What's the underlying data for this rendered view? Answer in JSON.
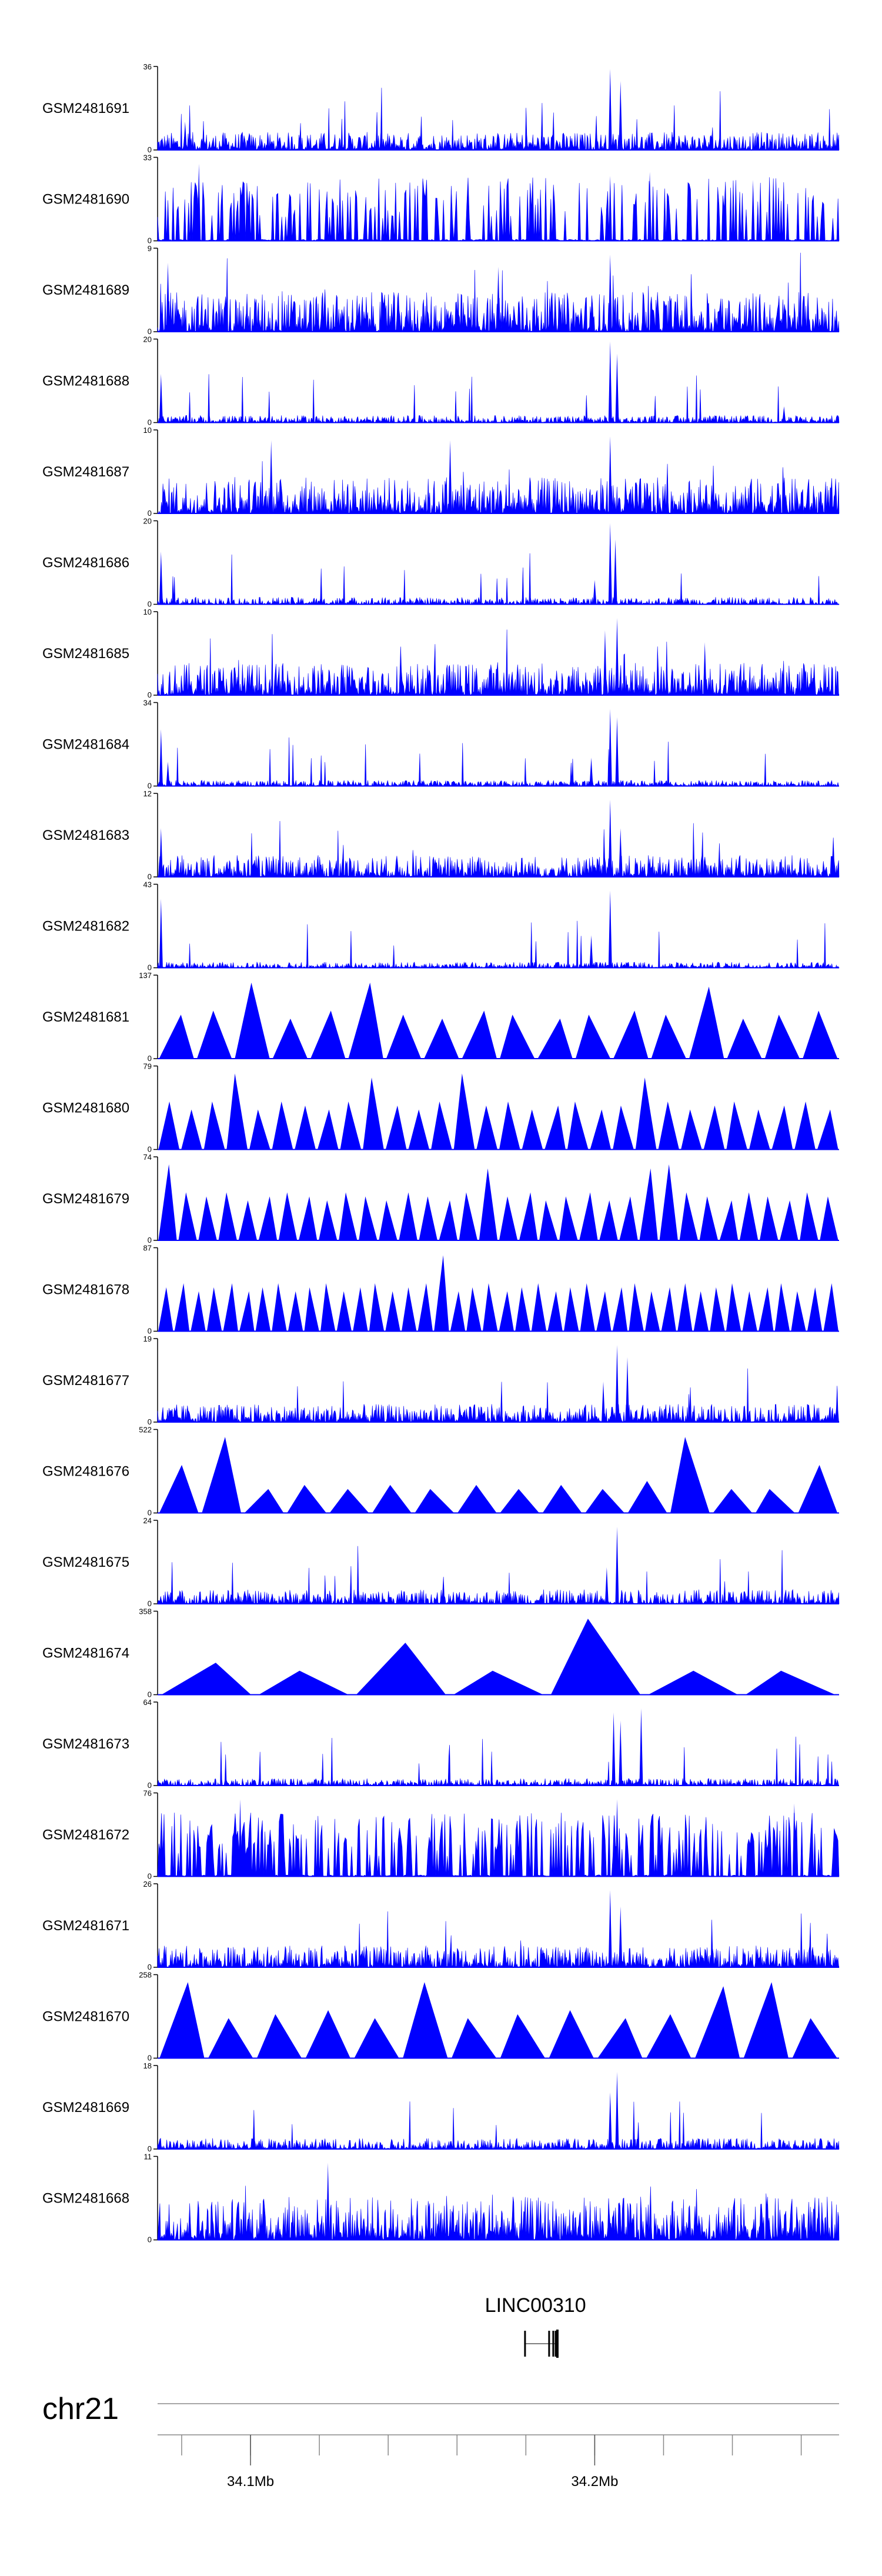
{
  "chart_data": {
    "type": "area",
    "chromosome": "chr21",
    "x_range_mb": [
      34.073,
      34.271
    ],
    "x_ticks": [
      {
        "pos": 34.1,
        "label": "34.1Mb"
      },
      {
        "pos": 34.2,
        "label": "34.2Mb"
      }
    ],
    "x_minor_ticks": [
      34.08,
      34.1,
      34.12,
      34.14,
      34.16,
      34.18,
      34.2,
      34.22,
      34.24,
      34.26
    ],
    "bar_color": "#0000ff",
    "tracks": [
      {
        "label": "GSM2481691",
        "ymax": "36",
        "ymin": "0",
        "kind": "dense",
        "density": 0.25,
        "spikes": [
          [
            34.2045,
            1.0
          ],
          [
            34.2075,
            0.85
          ],
          [
            34.2005,
            0.25
          ],
          [
            34.081,
            0.35
          ]
        ]
      },
      {
        "label": "GSM2481690",
        "ymax": "33",
        "ymin": "0",
        "kind": "comb",
        "density": 0.35,
        "spikes": [
          [
            34.2045,
            0.8
          ],
          [
            34.216,
            0.85
          ],
          [
            34.246,
            0.75
          ],
          [
            34.085,
            0.95
          ]
        ]
      },
      {
        "label": "GSM2481689",
        "ymax": "9",
        "ymin": "0",
        "kind": "dense",
        "density": 0.55,
        "spikes": [
          [
            34.2045,
            0.95
          ],
          [
            34.076,
            0.85
          ],
          [
            34.172,
            0.8
          ]
        ]
      },
      {
        "label": "GSM2481688",
        "ymax": "20",
        "ymin": "0",
        "kind": "dense",
        "density": 0.1,
        "spikes": [
          [
            34.2045,
            1.0
          ],
          [
            34.2065,
            0.85
          ],
          [
            34.074,
            0.6
          ],
          [
            34.255,
            0.2
          ]
        ]
      },
      {
        "label": "GSM2481687",
        "ymax": "10",
        "ymin": "0",
        "kind": "dense",
        "density": 0.5,
        "spikes": [
          [
            34.2045,
            0.95
          ],
          [
            34.106,
            0.9
          ],
          [
            34.158,
            0.9
          ]
        ]
      },
      {
        "label": "GSM2481686",
        "ymax": "20",
        "ymin": "0",
        "kind": "dense",
        "density": 0.1,
        "spikes": [
          [
            34.2045,
            1.0
          ],
          [
            34.206,
            0.8
          ],
          [
            34.074,
            0.65
          ],
          [
            34.2,
            0.3
          ]
        ]
      },
      {
        "label": "GSM2481685",
        "ymax": "10",
        "ymin": "0",
        "kind": "dense",
        "density": 0.45,
        "spikes": [
          [
            34.2065,
            0.95
          ],
          [
            34.203,
            0.8
          ],
          [
            34.232,
            0.65
          ]
        ]
      },
      {
        "label": "GSM2481684",
        "ymax": "34",
        "ymin": "0",
        "kind": "dense",
        "density": 0.08,
        "spikes": [
          [
            34.2045,
            0.95
          ],
          [
            34.2065,
            0.85
          ],
          [
            34.199,
            0.35
          ],
          [
            34.074,
            0.7
          ],
          [
            34.076,
            0.3
          ]
        ]
      },
      {
        "label": "GSM2481683",
        "ymax": "12",
        "ymin": "0",
        "kind": "dense",
        "density": 0.3,
        "spikes": [
          [
            34.2045,
            0.95
          ],
          [
            34.2075,
            0.6
          ],
          [
            34.074,
            0.6
          ]
        ]
      },
      {
        "label": "GSM2481682",
        "ymax": "43",
        "ymin": "0",
        "kind": "dense",
        "density": 0.08,
        "spikes": [
          [
            34.2045,
            0.95
          ],
          [
            34.199,
            0.4
          ],
          [
            34.074,
            0.85
          ]
        ]
      },
      {
        "label": "GSM2481681",
        "ymax": "137",
        "ymin": "0",
        "kind": "triangles",
        "count": 18,
        "peaks": [
          0.55,
          0.6,
          0.95,
          0.5,
          0.6,
          0.95,
          0.55,
          0.5,
          0.6,
          0.55,
          0.5,
          0.55,
          0.6,
          0.55,
          0.9,
          0.5,
          0.55,
          0.6
        ]
      },
      {
        "label": "GSM2481680",
        "ymax": "79",
        "ymin": "0",
        "kind": "triangles",
        "count": 30,
        "peaks": [
          0.6,
          0.5,
          0.6,
          0.95,
          0.5,
          0.6,
          0.55,
          0.5,
          0.6,
          0.9,
          0.55,
          0.5,
          0.6,
          0.95,
          0.55,
          0.6,
          0.5,
          0.55,
          0.6,
          0.5,
          0.55,
          0.9,
          0.6,
          0.5,
          0.55,
          0.6,
          0.5,
          0.55,
          0.6,
          0.5
        ]
      },
      {
        "label": "GSM2481679",
        "ymax": "74",
        "ymin": "0",
        "kind": "triangles",
        "count": 34,
        "peaks": [
          0.95,
          0.6,
          0.55,
          0.6,
          0.5,
          0.55,
          0.6,
          0.55,
          0.5,
          0.6,
          0.55,
          0.5,
          0.6,
          0.55,
          0.5,
          0.6,
          0.9,
          0.55,
          0.6,
          0.5,
          0.55,
          0.6,
          0.5,
          0.55,
          0.9,
          0.95,
          0.6,
          0.55,
          0.5,
          0.6,
          0.55,
          0.5,
          0.6,
          0.55
        ]
      },
      {
        "label": "GSM2481678",
        "ymax": "87",
        "ymin": "0",
        "kind": "triangles",
        "count": 42,
        "peaks": [
          0.55,
          0.6,
          0.5,
          0.55,
          0.6,
          0.5,
          0.55,
          0.6,
          0.5,
          0.55,
          0.6,
          0.5,
          0.55,
          0.6,
          0.5,
          0.55,
          0.6,
          0.95,
          0.5,
          0.55,
          0.6,
          0.5,
          0.55,
          0.6,
          0.5,
          0.55,
          0.6,
          0.5,
          0.55,
          0.6,
          0.5,
          0.55,
          0.6,
          0.5,
          0.55,
          0.6,
          0.5,
          0.55,
          0.6,
          0.5,
          0.55,
          0.6
        ]
      },
      {
        "label": "GSM2481677",
        "ymax": "19",
        "ymin": "0",
        "kind": "dense",
        "density": 0.25,
        "spikes": [
          [
            34.2065,
            0.95
          ],
          [
            34.2095,
            0.8
          ],
          [
            34.2025,
            0.5
          ]
        ]
      },
      {
        "label": "GSM2481676",
        "ymax": "522",
        "ymin": "0",
        "kind": "triangles",
        "count": 16,
        "peaks": [
          0.6,
          0.95,
          0.3,
          0.35,
          0.3,
          0.35,
          0.3,
          0.35,
          0.3,
          0.35,
          0.3,
          0.4,
          0.95,
          0.3,
          0.3,
          0.6
        ]
      },
      {
        "label": "GSM2481675",
        "ymax": "24",
        "ymin": "0",
        "kind": "dense",
        "density": 0.2,
        "spikes": [
          [
            34.2065,
            0.95
          ],
          [
            34.2035,
            0.45
          ]
        ]
      },
      {
        "label": "GSM2481674",
        "ymax": "358",
        "ymin": "0",
        "kind": "triangles",
        "count": 7,
        "peaks": [
          0.4,
          0.3,
          0.65,
          0.3,
          0.95,
          0.3,
          0.3
        ]
      },
      {
        "label": "GSM2481673",
        "ymax": "64",
        "ymin": "0",
        "kind": "dense",
        "density": 0.1,
        "spikes": [
          [
            34.2055,
            0.9
          ],
          [
            34.2075,
            0.8
          ],
          [
            34.2135,
            0.95
          ]
        ]
      },
      {
        "label": "GSM2481672",
        "ymax": "76",
        "ymin": "0",
        "kind": "comb",
        "density": 0.5,
        "spikes": [
          [
            34.097,
            0.95
          ],
          [
            34.2065,
            0.95
          ],
          [
            34.258,
            0.9
          ]
        ]
      },
      {
        "label": "GSM2481671",
        "ymax": "26",
        "ymin": "0",
        "kind": "dense",
        "density": 0.3,
        "spikes": [
          [
            34.2045,
            0.95
          ],
          [
            34.2075,
            0.75
          ]
        ]
      },
      {
        "label": "GSM2481670",
        "ymax": "258",
        "ymin": "0",
        "kind": "triangles",
        "count": 14,
        "peaks": [
          0.95,
          0.5,
          0.55,
          0.6,
          0.5,
          0.95,
          0.5,
          0.55,
          0.6,
          0.5,
          0.55,
          0.9,
          0.95,
          0.5
        ]
      },
      {
        "label": "GSM2481669",
        "ymax": "18",
        "ymin": "0",
        "kind": "dense",
        "density": 0.15,
        "spikes": [
          [
            34.2065,
            0.95
          ],
          [
            34.2045,
            0.7
          ]
        ]
      },
      {
        "label": "GSM2481668",
        "ymax": "11",
        "ymin": "0",
        "kind": "dense",
        "density": 0.6,
        "spikes": [
          [
            34.1225,
            0.95
          ]
        ]
      }
    ],
    "gene": {
      "name": "LINC00310",
      "start_mb": 34.1795,
      "end_mb": 34.1895,
      "exons": [
        [
          34.1795,
          34.1798
        ],
        [
          34.1865,
          34.1868
        ],
        [
          34.1877,
          34.1879
        ],
        [
          34.1884,
          34.1886
        ],
        [
          34.1888,
          34.1895
        ]
      ]
    }
  }
}
